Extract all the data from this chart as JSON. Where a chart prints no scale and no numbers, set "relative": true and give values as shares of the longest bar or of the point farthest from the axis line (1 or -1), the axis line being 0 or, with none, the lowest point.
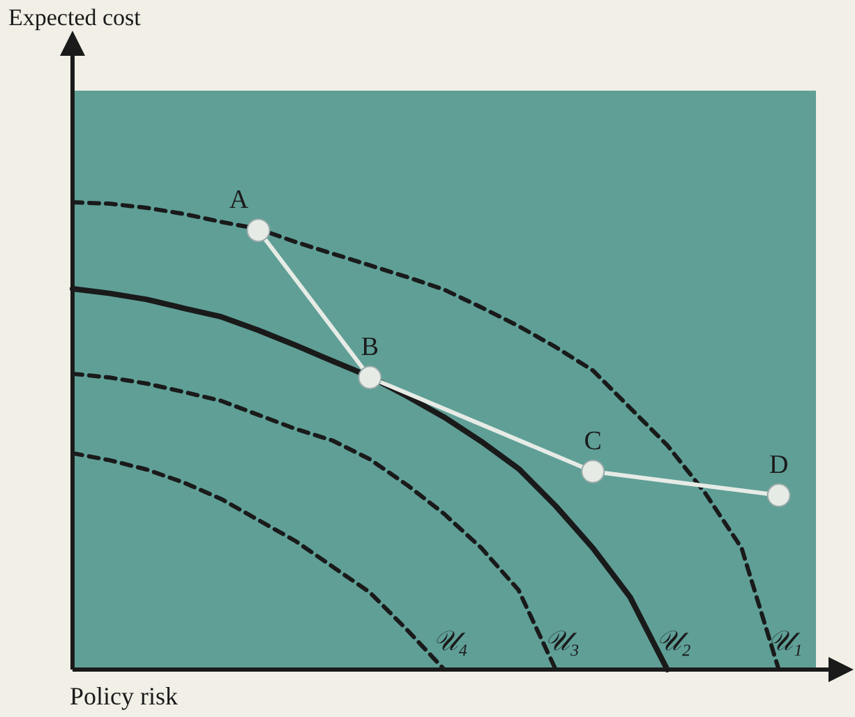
{
  "chart_data": {
    "type": "line",
    "relative": true,
    "xlabel": "Policy risk",
    "legend": false,
    "grid": false,
    "categories": [
      null,
      null,
      null,
      null,
      null,
      null,
      null,
      null,
      null,
      null,
      null,
      null,
      null,
      null,
      null,
      null,
      null,
      null,
      null,
      null,
      null
    ],
    "series": [
      {
        "name": "𝒰₁",
        "color": "#1a1a1a",
        "line_style": "dashed",
        "marker": "none",
        "values": [
          1,
          0.997,
          0.988,
          0.975,
          0.958,
          0.943,
          0.915,
          0.89,
          0.865,
          0.84,
          0.813,
          0.775,
          0.735,
          0.69,
          0.64,
          0.56,
          0.48,
          0.38,
          0.26,
          0,
          null
        ]
      },
      {
        "name": "𝒰₂",
        "color": "#1a1a1a",
        "line_style": "solid",
        "marker": "none",
        "values": [
          0.815,
          0.805,
          0.792,
          0.773,
          0.755,
          0.726,
          0.694,
          0.66,
          0.627,
          0.585,
          0.54,
          0.488,
          0.43,
          0.35,
          0.26,
          0.155,
          0,
          null,
          null,
          null,
          null
        ]
      },
      {
        "name": "𝒰₃",
        "color": "#1a1a1a",
        "line_style": "dashed",
        "marker": "none",
        "values": [
          0.633,
          0.625,
          0.612,
          0.594,
          0.575,
          0.545,
          0.515,
          0.49,
          0.45,
          0.395,
          0.333,
          0.26,
          0.17,
          0,
          null,
          null,
          null,
          null,
          null,
          null,
          null
        ]
      },
      {
        "name": "𝒰₄",
        "color": "#1a1a1a",
        "line_style": "dashed",
        "marker": "none",
        "values": [
          0.463,
          0.448,
          0.428,
          0.4,
          0.365,
          0.32,
          0.275,
          0.22,
          0.165,
          0.085,
          0,
          null,
          null,
          null,
          null,
          null,
          null,
          null,
          null,
          null,
          null
        ]
      },
      {
        "color": "#e6ebe6",
        "line_style": "solid",
        "marker": "circle",
        "values": [
          null,
          null,
          null,
          null,
          null,
          0.94,
          null,
          null,
          0.625,
          null,
          null,
          null,
          null,
          null,
          0.424,
          null,
          null,
          null,
          null,
          0.373,
          null
        ]
      }
    ],
    "annotations": [
      "A",
      "B",
      "C",
      "D",
      "Expected cost"
    ]
  }
}
